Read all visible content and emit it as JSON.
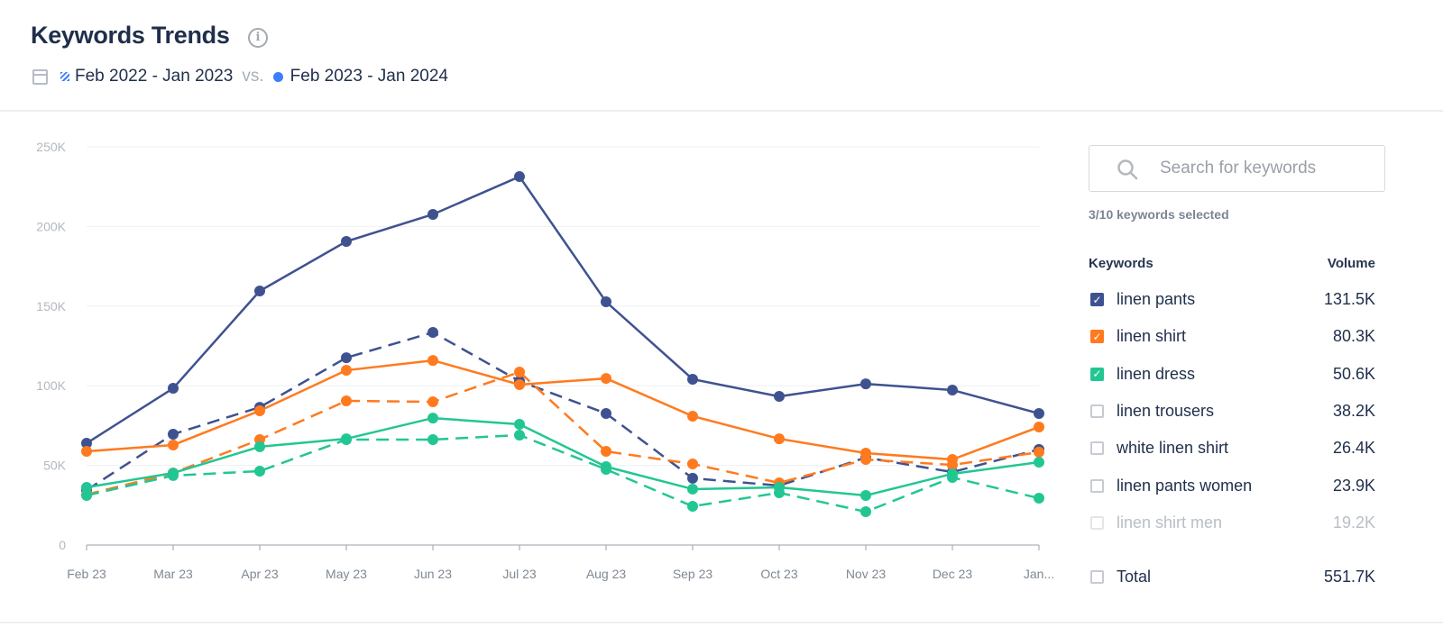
{
  "header": {
    "title": "Keywords Trends",
    "info_icon": "info-icon",
    "period_prev": "Feb 2022 - Jan 2023",
    "vs": "vs.",
    "period_curr": "Feb 2023 - Jan 2024"
  },
  "panel": {
    "search_placeholder": "Search for keywords",
    "selected_count": "3/10 keywords selected",
    "col_keywords": "Keywords",
    "col_volume": "Volume",
    "keywords": [
      {
        "label": "linen pants",
        "volume": "131.5K",
        "checked": true,
        "color": "#3f5290"
      },
      {
        "label": "linen shirt",
        "volume": "80.3K",
        "checked": true,
        "color": "#ff7a1f"
      },
      {
        "label": "linen dress",
        "volume": "50.6K",
        "checked": true,
        "color": "#22c693"
      },
      {
        "label": "linen trousers",
        "volume": "38.2K",
        "checked": false
      },
      {
        "label": "white linen shirt",
        "volume": "26.4K",
        "checked": false
      },
      {
        "label": "linen pants women",
        "volume": "23.9K",
        "checked": false
      },
      {
        "label": "linen shirt men",
        "volume": "19.2K",
        "checked": false,
        "disabled": true
      }
    ],
    "total": {
      "label": "Total",
      "volume": "551.7K",
      "checked": false
    }
  },
  "chart_data": {
    "type": "line",
    "categories": [
      "Feb 23",
      "Mar 23",
      "Apr 23",
      "May 23",
      "Jun 23",
      "Jul 23",
      "Aug 23",
      "Sep 23",
      "Oct 23",
      "Nov 23",
      "Dec 23",
      "Jan..."
    ],
    "ylim": [
      0,
      250000
    ],
    "yticks": [
      0,
      50000,
      100000,
      150000,
      200000,
      250000
    ],
    "ytick_labels": [
      "0",
      "50K",
      "100K",
      "150K",
      "200K",
      "250K"
    ],
    "grid": true,
    "series": [
      {
        "name": "linen pants",
        "period": "Feb 2023 - Jan 2024",
        "style": "solid",
        "color": "#3f5290",
        "values": [
          63900,
          98400,
          159500,
          190600,
          207600,
          231300,
          152700,
          104100,
          93300,
          101200,
          97300,
          82600
        ]
      },
      {
        "name": "linen pants",
        "period": "Feb 2022 - Jan 2023",
        "style": "dashed",
        "color": "#3f5290",
        "values": [
          34500,
          69600,
          86500,
          117600,
          133500,
          102900,
          82600,
          41900,
          37300,
          54900,
          45800,
          60000
        ]
      },
      {
        "name": "linen shirt",
        "period": "Feb 2023 - Jan 2024",
        "style": "solid",
        "color": "#ff7a1f",
        "values": [
          58800,
          62800,
          84300,
          109700,
          115900,
          100700,
          104600,
          80900,
          66700,
          57700,
          53700,
          74100
        ]
      },
      {
        "name": "linen shirt",
        "period": "Feb 2022 - Jan 2023",
        "style": "dashed",
        "color": "#ff7a1f",
        "values": [
          31700,
          45200,
          66200,
          90500,
          89900,
          108600,
          58800,
          50900,
          39000,
          53700,
          50300,
          58300
        ]
      },
      {
        "name": "linen dress",
        "period": "Feb 2023 - Jan 2024",
        "style": "solid",
        "color": "#22c693",
        "values": [
          36200,
          45200,
          61700,
          66700,
          79700,
          75800,
          49200,
          35100,
          36200,
          31100,
          44700,
          52000
        ]
      },
      {
        "name": "linen dress",
        "period": "Feb 2022 - Jan 2023",
        "style": "dashed",
        "color": "#22c693",
        "values": [
          31100,
          43600,
          46400,
          66200,
          66200,
          69000,
          47500,
          24300,
          32800,
          20900,
          42400,
          29400
        ]
      }
    ]
  }
}
